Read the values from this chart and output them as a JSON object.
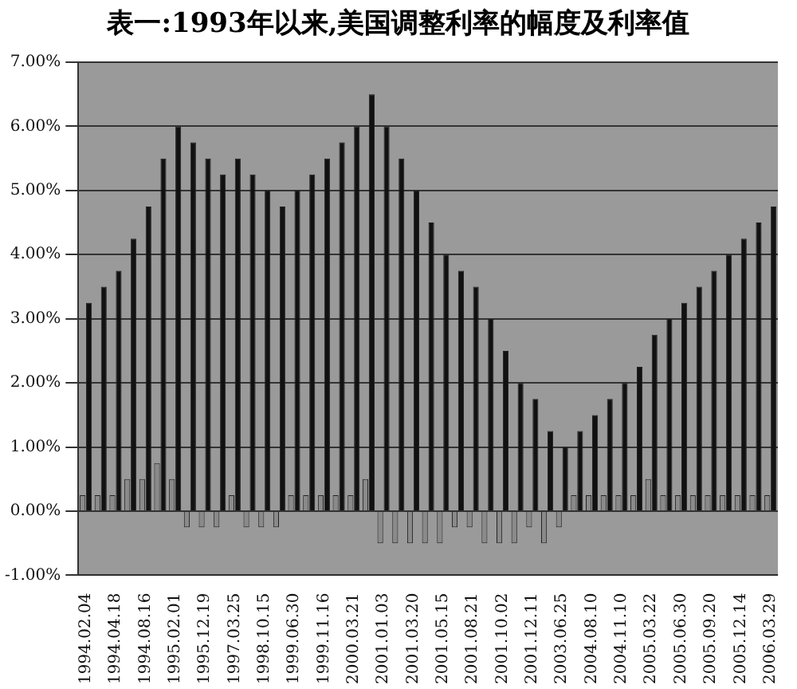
{
  "chart_data": {
    "type": "bar",
    "title": "表一:1993年以来,美国调整利率的幅度及利率值",
    "categories": [
      "1994.02.04",
      null,
      "1994.04.18",
      null,
      "1994.08.16",
      null,
      "1995.02.01",
      null,
      "1995.12.19",
      null,
      "1997.03.25",
      null,
      "1998.10.15",
      null,
      "1999.06.30",
      null,
      "1999.11.16",
      null,
      "2000.03.21",
      null,
      "2001.01.03",
      null,
      "2001.03.20",
      null,
      "2001.05.15",
      null,
      "2001.08.21",
      null,
      "2001.10.02",
      null,
      "2001.12.11",
      null,
      "2003.06.25",
      null,
      "2004.08.10",
      null,
      "2004.11.10",
      null,
      "2005.03.22",
      null,
      "2005.06.30",
      null,
      "2005.09.20",
      null,
      "2005.12.14",
      null,
      "2006.03.29"
    ],
    "series": [
      {
        "color": "#8a8a8a",
        "values": [
          0.25,
          0.25,
          0.25,
          0.5,
          0.5,
          0.75,
          0.5,
          -0.25,
          -0.25,
          -0.25,
          0.25,
          -0.25,
          -0.25,
          -0.25,
          0.25,
          0.25,
          0.25,
          0.25,
          0.25,
          0.5,
          -0.5,
          -0.5,
          -0.5,
          -0.5,
          -0.5,
          -0.25,
          -0.25,
          -0.5,
          -0.5,
          -0.5,
          -0.25,
          -0.5,
          -0.25,
          0.25,
          0.25,
          0.25,
          0.25,
          0.25,
          0.5,
          0.25,
          0.25,
          0.25,
          0.25,
          0.25,
          0.25,
          0.25,
          0.25
        ]
      },
      {
        "color": "#111111",
        "values": [
          3.25,
          3.5,
          3.75,
          4.25,
          4.75,
          5.5,
          6.0,
          5.75,
          5.5,
          5.25,
          5.5,
          5.25,
          5.0,
          4.75,
          5.0,
          5.25,
          5.5,
          5.75,
          6.0,
          6.5,
          6.0,
          5.5,
          5.0,
          4.5,
          4.0,
          3.75,
          3.5,
          3.0,
          2.5,
          2.0,
          1.75,
          1.25,
          1.0,
          1.25,
          1.5,
          1.75,
          2.0,
          2.25,
          2.75,
          3.0,
          3.25,
          3.5,
          3.75,
          4.0,
          4.25,
          4.5,
          4.75
        ]
      }
    ],
    "ylim": [
      -1,
      7
    ],
    "yticks": [
      {
        "value": -1,
        "label": "-1.00%"
      },
      {
        "value": 0,
        "label": "0.00%"
      },
      {
        "value": 1,
        "label": "1.00%"
      },
      {
        "value": 2,
        "label": "2.00%"
      },
      {
        "value": 3,
        "label": "3.00%"
      },
      {
        "value": 4,
        "label": "4.00%"
      },
      {
        "value": 5,
        "label": "5.00%"
      },
      {
        "value": 6,
        "label": "6.00%"
      },
      {
        "value": 7,
        "label": "7.00%"
      }
    ],
    "grid": "y",
    "legend": false
  }
}
